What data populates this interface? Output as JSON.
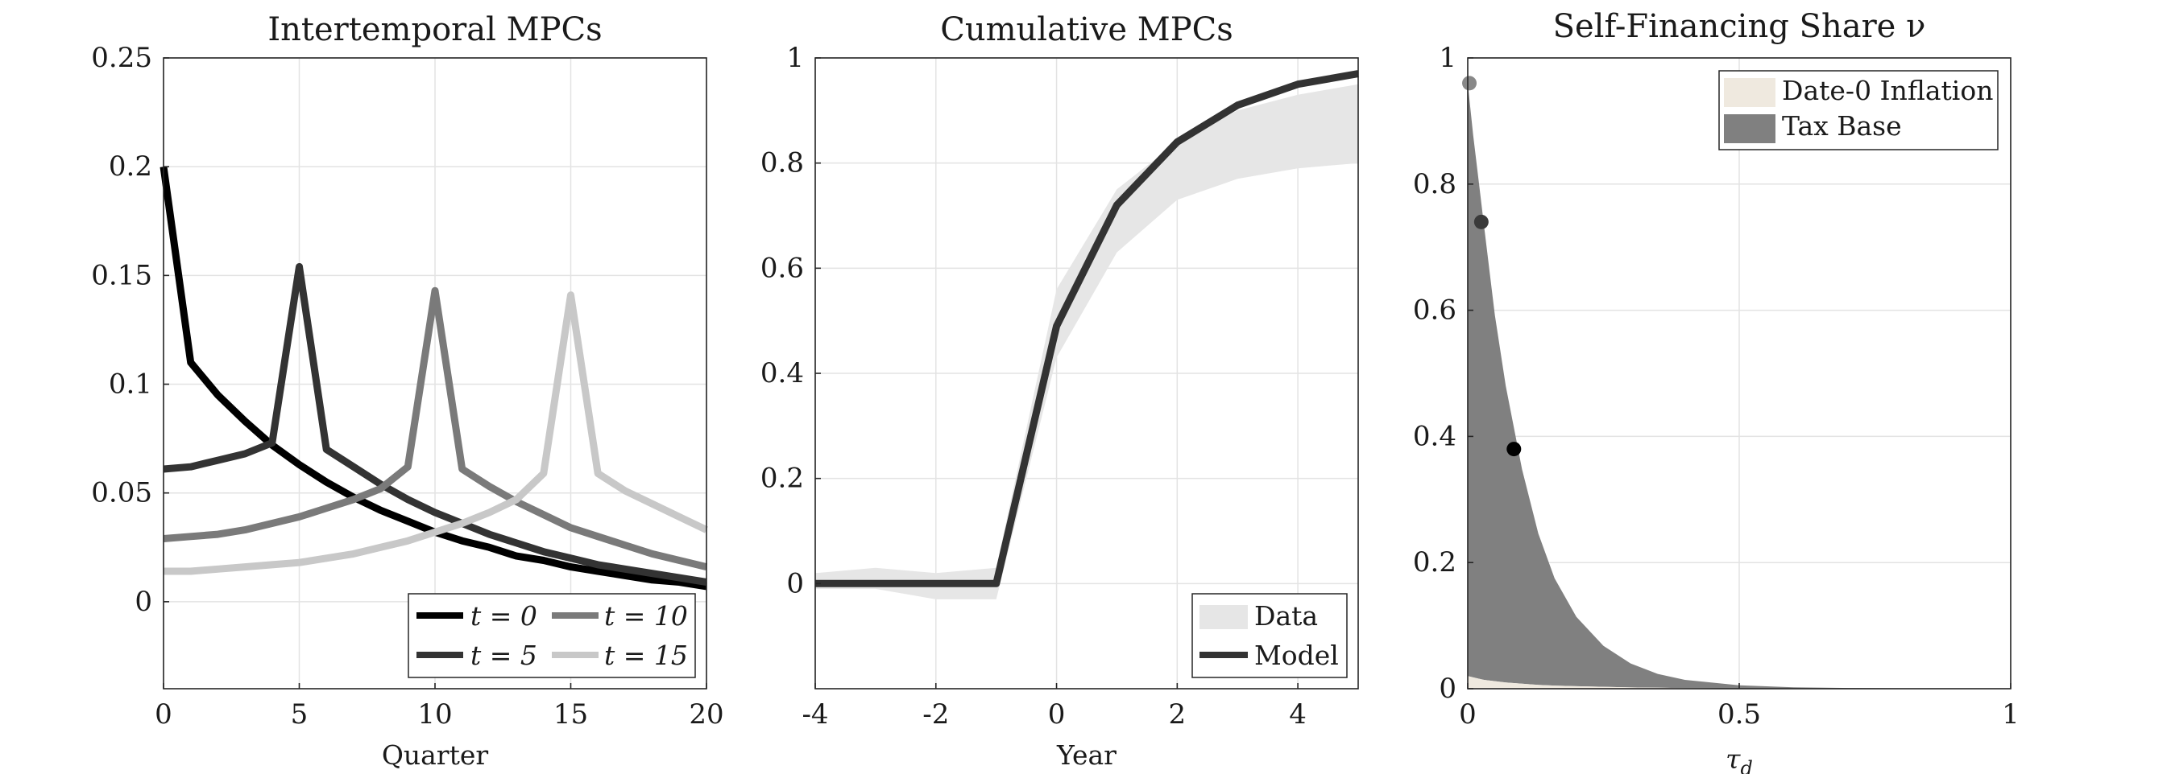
{
  "chart_data": [
    {
      "type": "line",
      "title": "Intertemporal MPCs",
      "xlabel": "Quarter",
      "ylabel": "",
      "xlim": [
        0,
        20
      ],
      "ylim": [
        -0.04,
        0.25
      ],
      "xticks": [
        0,
        5,
        10,
        15,
        20
      ],
      "yticks": [
        0,
        0.05,
        0.1,
        0.15,
        0.2,
        0.25
      ],
      "ytick_labels": [
        "0",
        "0.05",
        "0.1",
        "0.15",
        "0.2",
        "0.25"
      ],
      "grid": true,
      "legend_position": "bottom-right",
      "x": [
        0,
        1,
        2,
        3,
        4,
        5,
        6,
        7,
        8,
        9,
        10,
        11,
        12,
        13,
        14,
        15,
        16,
        17,
        18,
        19,
        20
      ],
      "series": [
        {
          "name": "t = 0",
          "color": "#000000",
          "values": [
            0.2,
            0.11,
            0.095,
            0.083,
            0.072,
            0.063,
            0.055,
            0.048,
            0.042,
            0.037,
            0.032,
            0.028,
            0.025,
            0.021,
            0.019,
            0.016,
            0.014,
            0.012,
            0.01,
            0.009,
            0.007
          ]
        },
        {
          "name": "t = 5",
          "color": "#333333",
          "values": [
            0.061,
            0.062,
            0.065,
            0.068,
            0.073,
            0.154,
            0.07,
            0.062,
            0.054,
            0.047,
            0.041,
            0.036,
            0.031,
            0.027,
            0.023,
            0.02,
            0.017,
            0.015,
            0.013,
            0.011,
            0.009
          ]
        },
        {
          "name": "t = 10",
          "color": "#7a7a7a",
          "values": [
            0.029,
            0.03,
            0.031,
            0.033,
            0.036,
            0.039,
            0.043,
            0.047,
            0.052,
            0.062,
            0.143,
            0.061,
            0.053,
            0.046,
            0.04,
            0.034,
            0.03,
            0.026,
            0.022,
            0.019,
            0.016
          ]
        },
        {
          "name": "t = 15",
          "color": "#c8c8c8",
          "values": [
            0.014,
            0.014,
            0.015,
            0.016,
            0.017,
            0.018,
            0.02,
            0.022,
            0.025,
            0.028,
            0.032,
            0.036,
            0.041,
            0.047,
            0.059,
            0.141,
            0.059,
            0.051,
            0.045,
            0.039,
            0.033
          ]
        }
      ]
    },
    {
      "type": "line",
      "title": "Cumulative MPCs",
      "xlabel": "Year",
      "ylabel": "",
      "xlim": [
        -4,
        5
      ],
      "ylim": [
        -0.2,
        1
      ],
      "xticks": [
        -4,
        -2,
        0,
        2,
        4
      ],
      "yticks": [
        0,
        0.2,
        0.4,
        0.6,
        0.8,
        1
      ],
      "ytick_labels": [
        "0",
        "0.2",
        "0.4",
        "0.6",
        "0.8",
        "1"
      ],
      "grid": true,
      "legend_position": "bottom-right",
      "x": [
        -4,
        -3,
        -2,
        -1,
        0,
        1,
        2,
        3,
        4,
        5
      ],
      "series": [
        {
          "name": "Data",
          "kind": "band",
          "color": "#e6e6e6",
          "lower": [
            -0.01,
            -0.01,
            -0.03,
            -0.03,
            0.43,
            0.63,
            0.73,
            0.77,
            0.79,
            0.8
          ],
          "upper": [
            0.02,
            0.03,
            0.02,
            0.03,
            0.56,
            0.75,
            0.84,
            0.9,
            0.93,
            0.95
          ]
        },
        {
          "name": "Model",
          "kind": "line",
          "color": "#333333",
          "values": [
            0,
            0,
            0,
            0,
            0.49,
            0.72,
            0.84,
            0.91,
            0.95,
            0.97
          ]
        }
      ]
    },
    {
      "type": "area",
      "title": "Self-Financing Share ν",
      "xlabel": "τ",
      "xlabel_sub": "d",
      "ylabel": "",
      "xlim": [
        0,
        1
      ],
      "ylim": [
        0,
        1
      ],
      "xticks": [
        0,
        0.5,
        1
      ],
      "xtick_labels": [
        "0",
        "0.5",
        "1"
      ],
      "yticks": [
        0,
        0.2,
        0.4,
        0.6,
        0.8,
        1
      ],
      "ytick_labels": [
        "0",
        "0.2",
        "0.4",
        "0.6",
        "0.8",
        "1"
      ],
      "grid": true,
      "legend_position": "top-right",
      "x": [
        0,
        0.01,
        0.02,
        0.03,
        0.05,
        0.07,
        0.1,
        0.13,
        0.16,
        0.2,
        0.25,
        0.3,
        0.35,
        0.4,
        0.5,
        0.6,
        0.7,
        0.8,
        0.9,
        1.0
      ],
      "series": [
        {
          "name": "Date-0 Inflation",
          "color": "#efe9df",
          "values": [
            0.02,
            0.018,
            0.016,
            0.014,
            0.012,
            0.01,
            0.008,
            0.006,
            0.005,
            0.004,
            0.003,
            0.002,
            0.0015,
            0.001,
            0.0005,
            0.0003,
            0.0002,
            0.0001,
            0.0,
            0.0
          ]
        },
        {
          "name": "Tax Base",
          "color": "#808080",
          "values": [
            0.94,
            0.86,
            0.79,
            0.72,
            0.58,
            0.47,
            0.34,
            0.24,
            0.17,
            0.11,
            0.065,
            0.038,
            0.022,
            0.013,
            0.005,
            0.002,
            0.001,
            0.0005,
            0.0002,
            0.0
          ]
        }
      ],
      "points": [
        {
          "x": 0.003,
          "y": 0.96,
          "color": "#888888"
        },
        {
          "x": 0.025,
          "y": 0.74,
          "color": "#3a3a3a"
        },
        {
          "x": 0.085,
          "y": 0.38,
          "color": "#000000"
        }
      ]
    }
  ]
}
